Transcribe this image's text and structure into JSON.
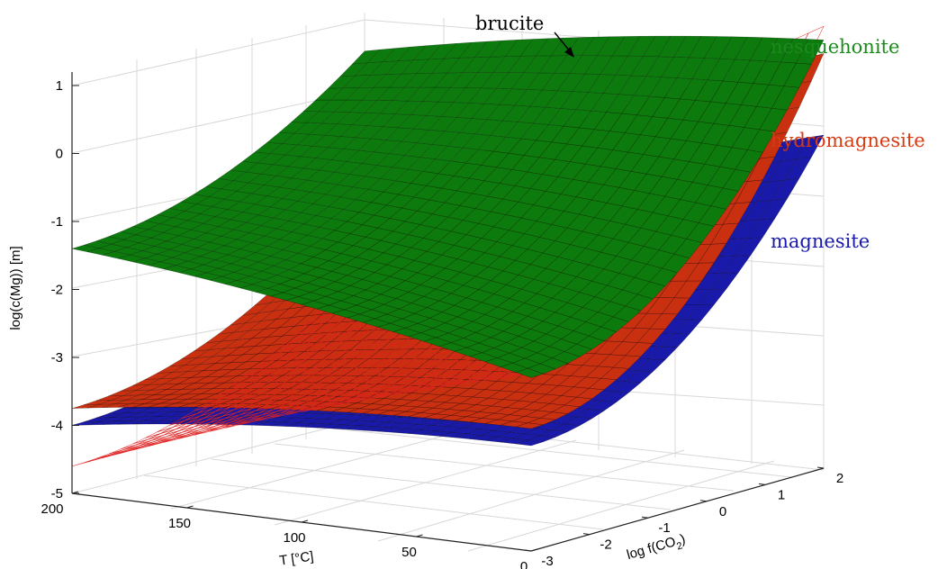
{
  "chart_data": {
    "type": "surface3d",
    "xlabel": "T [°C]",
    "ylabel": "log f(CO2)",
    "ylabel_main": "log f(CO",
    "ylabel_sub": "2",
    "ylabel_close": ")",
    "zlabel": "log(c(Mg)) [m]",
    "x_ticks": [
      "200",
      "150",
      "100",
      "50",
      "0"
    ],
    "y_ticks": [
      "-3",
      "-2",
      "-1",
      "0",
      "1",
      "2"
    ],
    "z_ticks": [
      "1",
      "0",
      "-1",
      "-2",
      "-3",
      "-4",
      "-5"
    ],
    "xlim": [
      0,
      200
    ],
    "ylim": [
      -3,
      2
    ],
    "zlim": [
      -5,
      1
    ],
    "grid": true,
    "series": [
      {
        "name": "nesquehonite",
        "color": "#0c7a0c",
        "style": "solid",
        "z_at_T200_logf-3": -1.4,
        "z_at_T0_logf-3": -2.45,
        "z_at_T0_logf2": 1.3
      },
      {
        "name": "hydromagnesite",
        "color": "#c83010",
        "style": "solid",
        "z_at_T200_logf-3": -3.75,
        "z_at_T0_logf-3": -3.2,
        "z_at_T0_logf2": 1.1
      },
      {
        "name": "magnesite",
        "color": "#1a1aaa",
        "style": "solid",
        "z_at_T200_logf-3": -4.0,
        "z_at_T0_logf-3": -3.45,
        "z_at_T0_logf2": -0.1
      },
      {
        "name": "brucite",
        "color": "#e02020",
        "style": "mesh",
        "z_at_T200_logf-3": -4.6,
        "z_at_T0_logf-3": -2.4,
        "z_at_T0_logf2": 1.5
      }
    ],
    "labels": {
      "brucite": "brucite",
      "nesquehonite": "nesquehonite",
      "hydromagnesite": "hydromagnesite",
      "magnesite": "magnesite"
    }
  }
}
